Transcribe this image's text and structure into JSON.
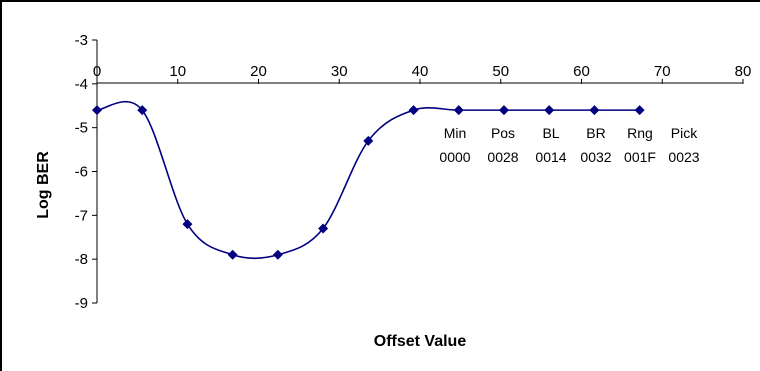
{
  "chart_data": {
    "type": "line",
    "title": "",
    "xlabel": "Offset Value",
    "ylabel": "Log BER",
    "xlim": [
      0,
      80
    ],
    "ylim": [
      -9,
      -3
    ],
    "x_ticks": [
      "0",
      "10",
      "20",
      "30",
      "40",
      "50",
      "60",
      "70",
      "80"
    ],
    "y_ticks": [
      "-3",
      "-4",
      "-5",
      "-6",
      "-7",
      "-8",
      "-9"
    ],
    "series": [
      {
        "color": "#000080",
        "marker": "diamond",
        "smooth": true,
        "points": [
          {
            "x": 0,
            "y": -4.6
          },
          {
            "x": 5.6,
            "y": -4.6
          },
          {
            "x": 11.2,
            "y": -7.2
          },
          {
            "x": 16.8,
            "y": -7.9
          },
          {
            "x": 22.4,
            "y": -7.9
          },
          {
            "x": 28.0,
            "y": -7.3
          },
          {
            "x": 33.6,
            "y": -5.3
          },
          {
            "x": 39.2,
            "y": -4.6
          },
          {
            "x": 44.8,
            "y": -4.6
          },
          {
            "x": 50.4,
            "y": -4.6
          },
          {
            "x": 56.0,
            "y": -4.6
          },
          {
            "x": 61.6,
            "y": -4.6
          },
          {
            "x": 67.2,
            "y": -4.6
          }
        ]
      }
    ],
    "annotations": [
      {
        "name": "Min",
        "value": "0000"
      },
      {
        "name": "Pos",
        "value": "0028"
      },
      {
        "name": "BL",
        "value": "0014"
      },
      {
        "name": "BR",
        "value": "0032"
      },
      {
        "name": "Rng",
        "value": "001F"
      },
      {
        "name": "Pick",
        "value": "0023"
      }
    ],
    "grid": false,
    "legend": "none"
  }
}
